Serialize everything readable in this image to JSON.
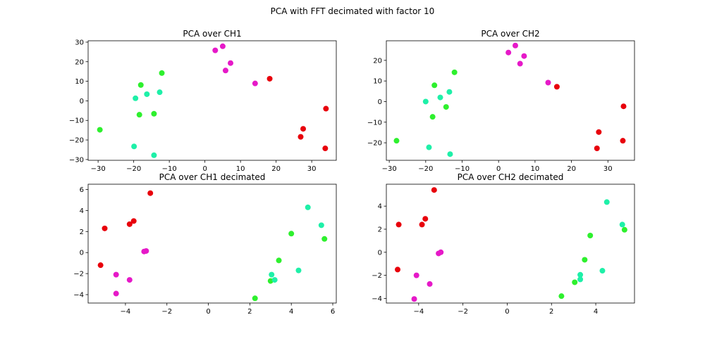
{
  "chart_data": {
    "title": "PCA with FFT decimated with factor 10",
    "colors": {
      "red": "#e8000b",
      "magenta": "#e619c8",
      "green": "#2ef02e",
      "cyan": "#1ef0a8"
    },
    "panels": [
      {
        "type": "scatter",
        "title": "PCA over CH1",
        "xlabel": "",
        "ylabel": "",
        "xlim": [
          -32.8,
          36.9
        ],
        "ylim": [
          -30.4,
          30.7
        ],
        "xticks": [
          -30,
          -20,
          -10,
          0,
          10,
          20,
          30
        ],
        "yticks": [
          -30,
          -20,
          -10,
          0,
          10,
          20,
          30
        ],
        "grid": false,
        "series": [
          {
            "name": "red",
            "points": [
              [
                18.2,
                11.3
              ],
              [
                34.0,
                -4.0
              ],
              [
                27.6,
                -14.3
              ],
              [
                26.9,
                -18.4
              ],
              [
                33.8,
                -24.3
              ]
            ]
          },
          {
            "name": "magenta",
            "points": [
              [
                2.9,
                25.8
              ],
              [
                5.0,
                27.9
              ],
              [
                7.2,
                19.3
              ],
              [
                5.8,
                15.5
              ],
              [
                14.1,
                8.9
              ]
            ]
          },
          {
            "name": "green",
            "points": [
              [
                -12.1,
                14.2
              ],
              [
                -18.0,
                8.1
              ],
              [
                -18.4,
                -7.1
              ],
              [
                -14.3,
                -6.6
              ],
              [
                -29.5,
                -14.8
              ]
            ]
          },
          {
            "name": "cyan",
            "points": [
              [
                -19.5,
                1.3
              ],
              [
                -16.3,
                3.4
              ],
              [
                -12.7,
                4.4
              ],
              [
                -19.9,
                -23.3
              ],
              [
                -14.3,
                -27.8
              ]
            ]
          }
        ]
      },
      {
        "type": "scatter",
        "title": "PCA over CH2",
        "xlabel": "",
        "ylabel": "",
        "xlim": [
          -30.8,
          37.3
        ],
        "ylim": [
          -28.5,
          29.5
        ],
        "xticks": [
          -30,
          -20,
          -10,
          0,
          10,
          20,
          30
        ],
        "yticks": [
          -20,
          -10,
          0,
          10,
          20
        ],
        "grid": false,
        "series": [
          {
            "name": "red",
            "points": [
              [
                16.0,
                7.2
              ],
              [
                34.3,
                -2.3
              ],
              [
                27.5,
                -14.8
              ],
              [
                27.0,
                -22.7
              ],
              [
                34.1,
                -19.0
              ]
            ]
          },
          {
            "name": "magenta",
            "points": [
              [
                2.7,
                23.8
              ],
              [
                4.6,
                27.2
              ],
              [
                7.0,
                22.1
              ],
              [
                5.9,
                18.4
              ],
              [
                13.6,
                9.2
              ]
            ]
          },
          {
            "name": "green",
            "points": [
              [
                -12.1,
                14.2
              ],
              [
                -17.6,
                7.9
              ],
              [
                -14.4,
                -2.6
              ],
              [
                -18.1,
                -7.4
              ],
              [
                -28.0,
                -19.0
              ]
            ]
          },
          {
            "name": "cyan",
            "points": [
              [
                -20.0,
                0.0
              ],
              [
                -16.0,
                2.0
              ],
              [
                -13.5,
                4.7
              ],
              [
                -19.1,
                -22.2
              ],
              [
                -13.3,
                -25.5
              ]
            ]
          }
        ]
      },
      {
        "type": "scatter",
        "title": "PCA over CH1 decimated",
        "xlabel": "",
        "ylabel": "",
        "xlim": [
          -5.8,
          6.17
        ],
        "ylim": [
          -4.8,
          6.5
        ],
        "xticks": [
          -4,
          -2,
          0,
          2,
          4,
          6
        ],
        "yticks": [
          -4,
          -2,
          0,
          2,
          4,
          6
        ],
        "grid": false,
        "series": [
          {
            "name": "red",
            "points": [
              [
                -2.8,
                5.65
              ],
              [
                -5.0,
                2.3
              ],
              [
                -3.8,
                2.7
              ],
              [
                -3.6,
                3.0
              ],
              [
                -5.2,
                -1.2
              ]
            ]
          },
          {
            "name": "magenta",
            "points": [
              [
                -3.1,
                0.1
              ],
              [
                -3.0,
                0.15
              ],
              [
                -4.45,
                -2.1
              ],
              [
                -3.8,
                -2.6
              ],
              [
                -4.45,
                -3.9
              ]
            ]
          },
          {
            "name": "green",
            "points": [
              [
                4.0,
                1.8
              ],
              [
                5.6,
                1.3
              ],
              [
                3.4,
                -0.75
              ],
              [
                3.0,
                -2.7
              ],
              [
                2.25,
                -4.35
              ]
            ]
          },
          {
            "name": "cyan",
            "points": [
              [
                4.8,
                4.3
              ],
              [
                5.45,
                2.6
              ],
              [
                4.35,
                -1.7
              ],
              [
                3.05,
                -2.1
              ],
              [
                3.2,
                -2.6
              ]
            ]
          }
        ]
      },
      {
        "type": "scatter",
        "title": "PCA over CH2 decimated",
        "xlabel": "",
        "ylabel": "",
        "xlim": [
          -5.46,
          5.75
        ],
        "ylim": [
          -4.4,
          5.9
        ],
        "xticks": [
          -4,
          -2,
          0,
          2,
          4
        ],
        "yticks": [
          -4,
          -2,
          0,
          2,
          4
        ],
        "grid": false,
        "series": [
          {
            "name": "red",
            "points": [
              [
                -3.3,
                5.4
              ],
              [
                -4.9,
                2.4
              ],
              [
                -3.85,
                2.4
              ],
              [
                -3.7,
                2.9
              ],
              [
                -4.95,
                -1.5
              ]
            ]
          },
          {
            "name": "magenta",
            "points": [
              [
                -3.1,
                -0.1
              ],
              [
                -3.0,
                0.0
              ],
              [
                -4.1,
                -2.0
              ],
              [
                -3.5,
                -2.75
              ],
              [
                -4.2,
                -4.05
              ]
            ]
          },
          {
            "name": "green",
            "points": [
              [
                3.75,
                1.45
              ],
              [
                5.3,
                1.95
              ],
              [
                3.5,
                -0.65
              ],
              [
                3.05,
                -2.6
              ],
              [
                2.45,
                -3.8
              ]
            ]
          },
          {
            "name": "cyan",
            "points": [
              [
                4.5,
                4.35
              ],
              [
                5.2,
                2.4
              ],
              [
                4.3,
                -1.6
              ],
              [
                3.3,
                -1.95
              ],
              [
                3.3,
                -2.35
              ]
            ]
          }
        ]
      }
    ]
  }
}
